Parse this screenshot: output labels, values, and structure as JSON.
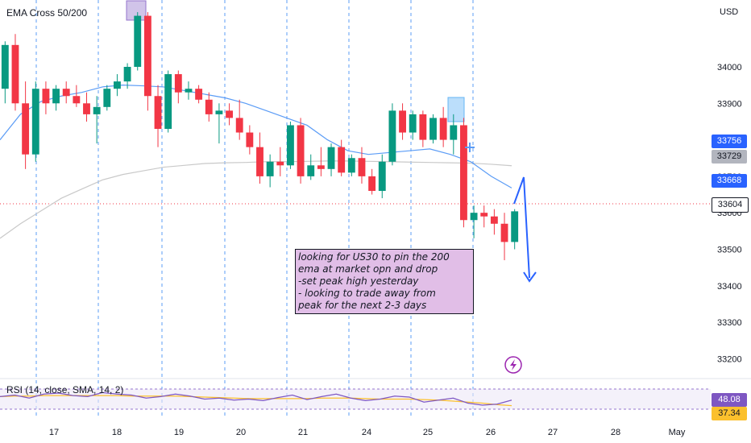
{
  "chart_data": [
    {
      "type": "candlestick",
      "title": "",
      "indicator_label": "EMA Cross 50/200",
      "currency": "USD",
      "x_tick_labels": [
        "17",
        "18",
        "19",
        "20",
        "21",
        "24",
        "25",
        "26",
        "27",
        "28",
        "May"
      ],
      "y_tick_labels": [
        "34000",
        "33900",
        "33800",
        "33700",
        "33600",
        "33500",
        "33400",
        "33300",
        "33200"
      ],
      "ylim": [
        33150,
        34170
      ],
      "grid": false,
      "price_tags": [
        {
          "value": "33756",
          "color": "#2962ff",
          "text_color": "#ffffff"
        },
        {
          "value": "33729",
          "color": "#b2b5be",
          "text_color": "#131722"
        },
        {
          "value": "33668",
          "color": "#2962ff",
          "text_color": "#ffffff"
        },
        {
          "value": "33604",
          "color": "#ffffff",
          "text_color": "#131722"
        }
      ],
      "series": [
        {
          "name": "EMA 50",
          "color": "#5b9cf6",
          "values": [
            33800,
            33870,
            33905,
            33920,
            33930,
            33945,
            33950,
            33948,
            33945,
            33935,
            33925,
            33915,
            33900,
            33880,
            33860,
            33840,
            33800,
            33770,
            33760,
            33765,
            33770,
            33775,
            33760,
            33740,
            33700,
            33668
          ]
        },
        {
          "name": "EMA 200",
          "color": "#c9c9c9",
          "values": [
            33530,
            33570,
            33605,
            33640,
            33665,
            33690,
            33705,
            33715,
            33725,
            33730,
            33735,
            33737,
            33738,
            33740,
            33740,
            33741,
            33742,
            33742,
            33741,
            33740,
            33739,
            33738,
            33737,
            33736,
            33733,
            33729
          ]
        }
      ],
      "candles_note": "approximate hourly OHLC, rendered as sequence",
      "candles": [
        [
          33940,
          34070,
          33900,
          34060
        ],
        [
          34060,
          34090,
          33880,
          33900
        ],
        [
          33900,
          33960,
          33720,
          33760
        ],
        [
          33760,
          33960,
          33740,
          33940
        ],
        [
          33940,
          33960,
          33870,
          33900
        ],
        [
          33900,
          33950,
          33880,
          33940
        ],
        [
          33940,
          33960,
          33900,
          33920
        ],
        [
          33920,
          33950,
          33890,
          33900
        ],
        [
          33900,
          33930,
          33850,
          33870
        ],
        [
          33870,
          33920,
          33790,
          33890
        ],
        [
          33890,
          33950,
          33880,
          33940
        ],
        [
          33940,
          33980,
          33920,
          33960
        ],
        [
          33960,
          34010,
          33940,
          34000
        ],
        [
          34000,
          34150,
          33990,
          34140
        ],
        [
          34140,
          34150,
          33880,
          33920
        ],
        [
          33920,
          33950,
          33780,
          33830
        ],
        [
          33830,
          33990,
          33820,
          33980
        ],
        [
          33980,
          33990,
          33900,
          33930
        ],
        [
          33930,
          33960,
          33910,
          33940
        ],
        [
          33940,
          33950,
          33900,
          33910
        ],
        [
          33910,
          33930,
          33850,
          33870
        ],
        [
          33870,
          33900,
          33790,
          33880
        ],
        [
          33880,
          33900,
          33840,
          33860
        ],
        [
          33860,
          33910,
          33800,
          33820
        ],
        [
          33820,
          33840,
          33760,
          33780
        ],
        [
          33780,
          33820,
          33680,
          33700
        ],
        [
          33700,
          33760,
          33670,
          33740
        ],
        [
          33740,
          33780,
          33700,
          33730
        ],
        [
          33730,
          33850,
          33720,
          33840
        ],
        [
          33840,
          33860,
          33680,
          33700
        ],
        [
          33700,
          33760,
          33690,
          33730
        ],
        [
          33730,
          33780,
          33700,
          33720
        ],
        [
          33720,
          33790,
          33700,
          33780
        ],
        [
          33780,
          33800,
          33700,
          33710
        ],
        [
          33710,
          33760,
          33700,
          33750
        ],
        [
          33750,
          33780,
          33680,
          33700
        ],
        [
          33700,
          33720,
          33650,
          33660
        ],
        [
          33660,
          33760,
          33640,
          33740
        ],
        [
          33740,
          33900,
          33730,
          33880
        ],
        [
          33880,
          33900,
          33800,
          33820
        ],
        [
          33820,
          33880,
          33800,
          33870
        ],
        [
          33870,
          33880,
          33780,
          33800
        ],
        [
          33800,
          33870,
          33790,
          33860
        ],
        [
          33860,
          33890,
          33780,
          33800
        ],
        [
          33800,
          33870,
          33760,
          33840
        ],
        [
          33840,
          33860,
          33560,
          33580
        ],
        [
          33580,
          33620,
          33530,
          33600
        ],
        [
          33600,
          33620,
          33560,
          33590
        ],
        [
          33590,
          33610,
          33540,
          33570
        ],
        [
          33570,
          33600,
          33470,
          33520
        ],
        [
          33520,
          33610,
          33500,
          33604
        ]
      ]
    },
    {
      "type": "line",
      "title": "",
      "indicator_label": "RSI (14, close, SMA, 14, 2)",
      "ylim": [
        0,
        100
      ],
      "price_tags": [
        {
          "value": "48.08",
          "color": "#7e57c2",
          "text_color": "#ffffff"
        },
        {
          "value": "37.34",
          "color": "#fbc02d",
          "text_color": "#131722"
        }
      ],
      "series": [
        {
          "name": "RSI",
          "color": "#7e57c2",
          "values": [
            55,
            58,
            52,
            60,
            62,
            57,
            55,
            63,
            60,
            58,
            52,
            55,
            60,
            56,
            50,
            52,
            48,
            50,
            47,
            53,
            58,
            49,
            55,
            60,
            52,
            47,
            50,
            56,
            54,
            44,
            48,
            52,
            42,
            38,
            40,
            48
          ]
        },
        {
          "name": "RSI-based MA",
          "color": "#fbc02d",
          "values": [
            55,
            56,
            56,
            57,
            57,
            57,
            57,
            57,
            57,
            56,
            56,
            56,
            56,
            55,
            54,
            53,
            52,
            51,
            51,
            51,
            51,
            51,
            52,
            52,
            52,
            51,
            50,
            50,
            50,
            49,
            48,
            46,
            44,
            42,
            39,
            37
          ]
        }
      ]
    }
  ],
  "annotation": {
    "lines": [
      "looking for US30 to pin the 200",
      "ema at market opn and drop",
      "-set peak high yesterday",
      "- looking to trade away from",
      "peak for the next 2-3 days"
    ],
    "colors": {
      "box": "#e1bee7",
      "arrow": "#2962ff",
      "highlight_box": "#d1c4e9",
      "highlight_box_blue": "#bbdefb"
    }
  },
  "icons": {
    "lightning": "lightning-icon",
    "crosshair": "crosshair-icon"
  }
}
